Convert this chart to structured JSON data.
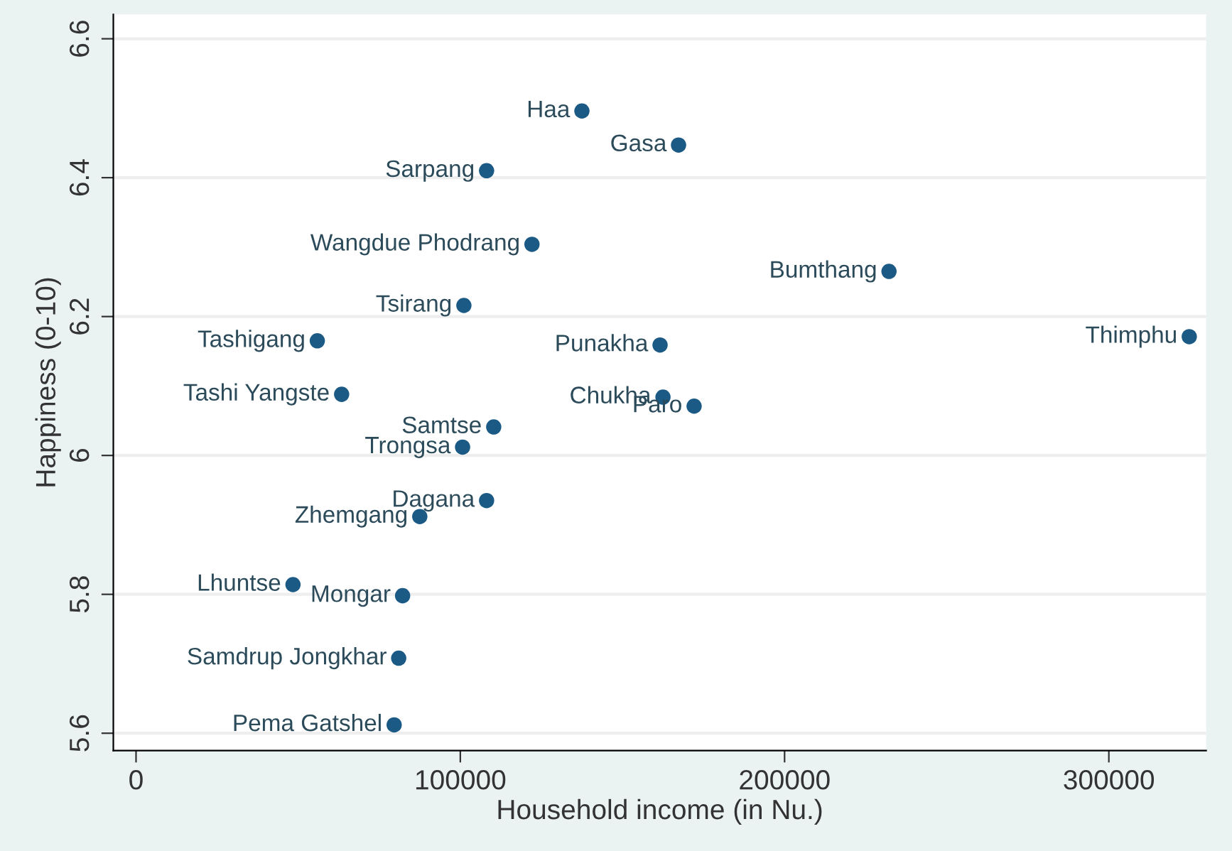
{
  "chart_data": {
    "type": "scatter",
    "xlabel": "Household income (in Nu.)",
    "ylabel": "Happiness (0-10)",
    "x": [
      137500,
      167300,
      108100,
      122100,
      232200,
      101100,
      55900,
      161600,
      324800,
      63400,
      162500,
      172100,
      110300,
      100700,
      108100,
      87500,
      48400,
      82200,
      81000,
      79600
    ],
    "values": [
      6.496,
      6.447,
      6.41,
      6.304,
      6.265,
      6.216,
      6.165,
      6.159,
      6.171,
      6.088,
      6.084,
      6.071,
      6.041,
      6.012,
      5.935,
      5.912,
      5.814,
      5.798,
      5.708,
      5.612
    ],
    "color": "#1b5a85",
    "marker": "circle",
    "grid": "y",
    "xlim": [
      -7000,
      330000
    ],
    "ylim": [
      5.575,
      6.635
    ],
    "xticks": [
      0,
      100000,
      200000,
      300000
    ],
    "yticks": [
      5.6,
      5.8,
      6,
      6.2,
      6.4,
      6.6
    ],
    "annotations": [
      {
        "text": "Haa",
        "x": 137500,
        "y": 6.496
      },
      {
        "text": "Gasa",
        "x": 167300,
        "y": 6.447
      },
      {
        "text": "Sarpang",
        "x": 108100,
        "y": 6.41
      },
      {
        "text": "Wangdue Phodrang",
        "x": 122100,
        "y": 6.304
      },
      {
        "text": "Bumthang",
        "x": 232200,
        "y": 6.265
      },
      {
        "text": "Tsirang",
        "x": 101100,
        "y": 6.216
      },
      {
        "text": "Tashigang",
        "x": 55900,
        "y": 6.165
      },
      {
        "text": "Punakha",
        "x": 161600,
        "y": 6.159
      },
      {
        "text": "Thimphu",
        "x": 324800,
        "y": 6.171
      },
      {
        "text": "Tashi Yangste",
        "x": 63400,
        "y": 6.088
      },
      {
        "text": "Chukha",
        "x": 162500,
        "y": 6.084
      },
      {
        "text": "Paro",
        "x": 172100,
        "y": 6.071
      },
      {
        "text": "Samtse",
        "x": 110300,
        "y": 6.041
      },
      {
        "text": "Trongsa",
        "x": 100700,
        "y": 6.012
      },
      {
        "text": "Dagana",
        "x": 108100,
        "y": 5.935
      },
      {
        "text": "Zhemgang",
        "x": 87500,
        "y": 5.912
      },
      {
        "text": "Lhuntse",
        "x": 48400,
        "y": 5.814
      },
      {
        "text": "Mongar",
        "x": 82200,
        "y": 5.798
      },
      {
        "text": "Samdrup Jongkhar",
        "x": 81000,
        "y": 5.708
      },
      {
        "text": "Pema Gatshel",
        "x": 79600,
        "y": 5.612
      }
    ]
  }
}
